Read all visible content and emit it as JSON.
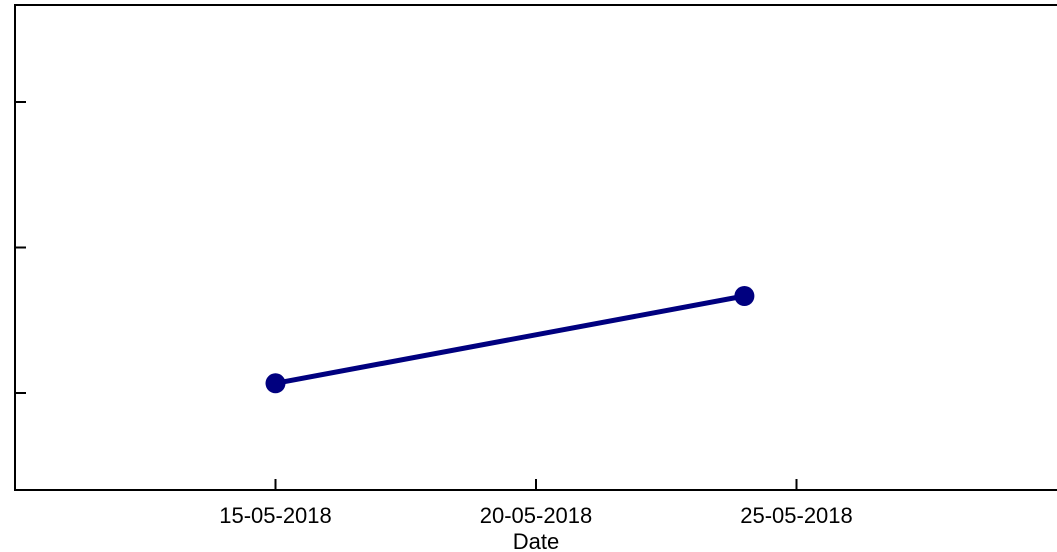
{
  "chart_data": {
    "type": "line",
    "title": "",
    "xlabel": "Date",
    "ylabel": "",
    "x_tick_labels": [
      "15-05-2018",
      "20-05-2018",
      "25-05-2018"
    ],
    "x_tick_dates": [
      "2018-05-15",
      "2018-05-20",
      "2018-05-25"
    ],
    "xlim": [
      "2018-05-10",
      "2018-05-30"
    ],
    "ylim": [
      0,
      1
    ],
    "y_ticks": [
      0.2,
      0.5,
      0.8
    ],
    "grid": false,
    "legend": "none",
    "series": [
      {
        "color": "#00007f",
        "points": [
          {
            "x": "2018-05-15",
            "y": 0.22
          },
          {
            "x": "2018-05-24",
            "y": 0.4
          }
        ]
      }
    ]
  }
}
